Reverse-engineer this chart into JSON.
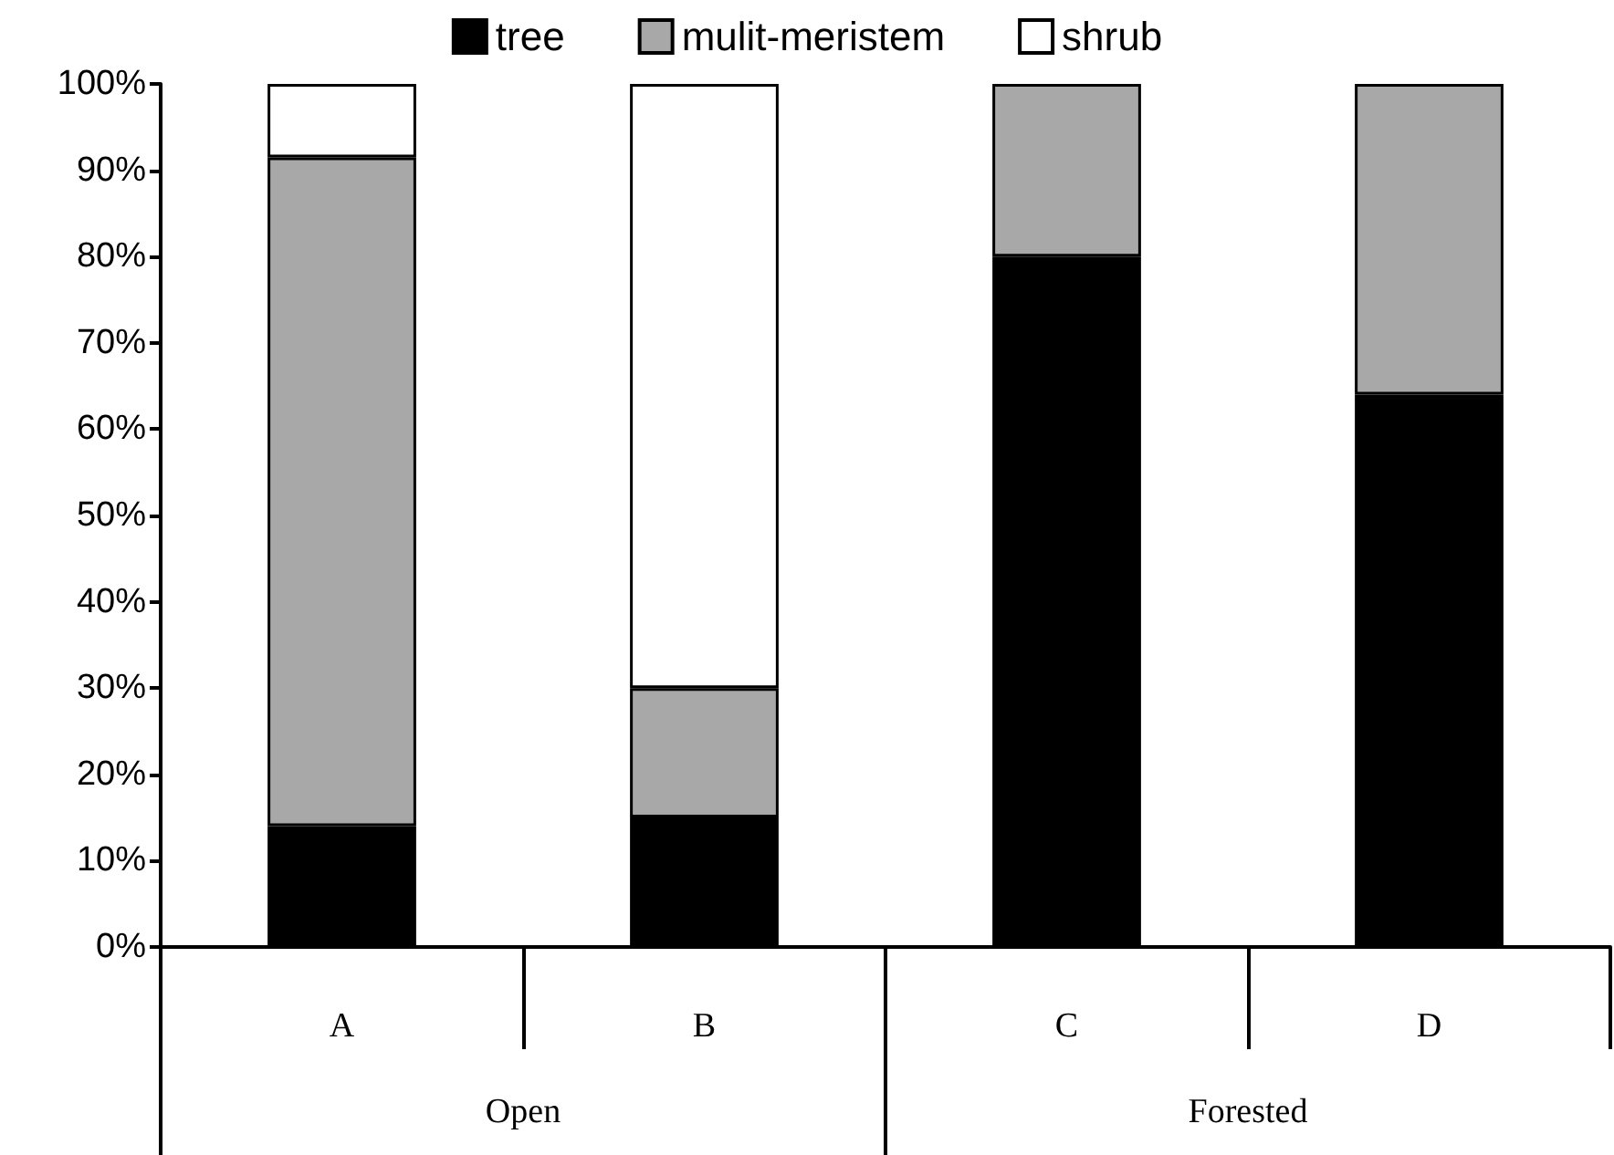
{
  "chart_data": {
    "type": "bar",
    "stacked": true,
    "categories": [
      "A",
      "B",
      "C",
      "D"
    ],
    "series": [
      {
        "name": "tree",
        "color": "#000000",
        "values": [
          14,
          15,
          80,
          64
        ]
      },
      {
        "name": "mulit-meristem",
        "color": "#a8a8a8",
        "values": [
          77.5,
          15,
          20,
          36
        ]
      },
      {
        "name": "shrub",
        "color": "#ffffff",
        "values": [
          8.5,
          70,
          null,
          null
        ]
      }
    ],
    "ylim": [
      0,
      100
    ],
    "yticks": [
      {
        "value": 0,
        "label": "0%"
      },
      {
        "value": 10,
        "label": "10%"
      },
      {
        "value": 20,
        "label": "20%"
      },
      {
        "value": 30,
        "label": "30%"
      },
      {
        "value": 40,
        "label": "40%"
      },
      {
        "value": 50,
        "label": "50%"
      },
      {
        "value": 60,
        "label": "60%"
      },
      {
        "value": 70,
        "label": "70%"
      },
      {
        "value": 80,
        "label": "80%"
      },
      {
        "value": 90,
        "label": "90%"
      },
      {
        "value": 100,
        "label": "100%"
      }
    ],
    "annotations": [
      "Open",
      "Forested"
    ],
    "grid": false,
    "legend": "top"
  }
}
